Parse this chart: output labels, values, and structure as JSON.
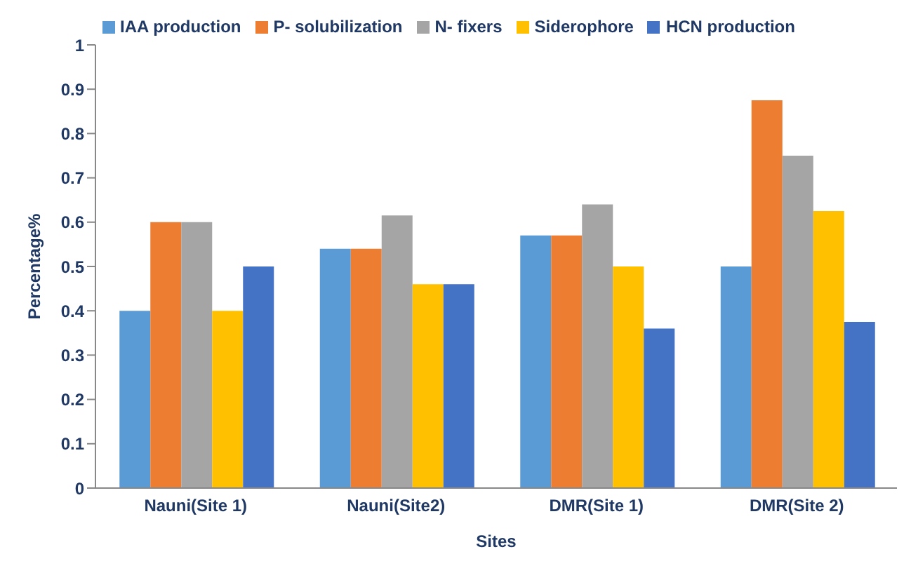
{
  "chart_data": {
    "type": "bar",
    "xlabel": "Sites",
    "ylabel": "Percentage%",
    "categories": [
      "Nauni(Site 1)",
      "Nauni(Site2)",
      "DMR(Site 1)",
      "DMR(Site 2)"
    ],
    "series": [
      {
        "name": "IAA production",
        "color": "#5b9bd5",
        "values": [
          0.4,
          0.54,
          0.57,
          0.5
        ]
      },
      {
        "name": "P- solubilization",
        "color": "#ed7d31",
        "values": [
          0.6,
          0.54,
          0.57,
          0.875
        ]
      },
      {
        "name": "N- fixers",
        "color": "#a5a5a5",
        "values": [
          0.6,
          0.615,
          0.64,
          0.75
        ]
      },
      {
        "name": "Siderophore",
        "color": "#ffc000",
        "values": [
          0.4,
          0.46,
          0.5,
          0.625
        ]
      },
      {
        "name": "HCN production",
        "color": "#4472c4",
        "values": [
          0.5,
          0.46,
          0.36,
          0.375
        ]
      }
    ],
    "ylim": [
      0,
      1
    ],
    "yticks": [
      0,
      0.1,
      0.2,
      0.3,
      0.4,
      0.5,
      0.6,
      0.7,
      0.8,
      0.9,
      1
    ],
    "grid": false,
    "legend": "top"
  }
}
